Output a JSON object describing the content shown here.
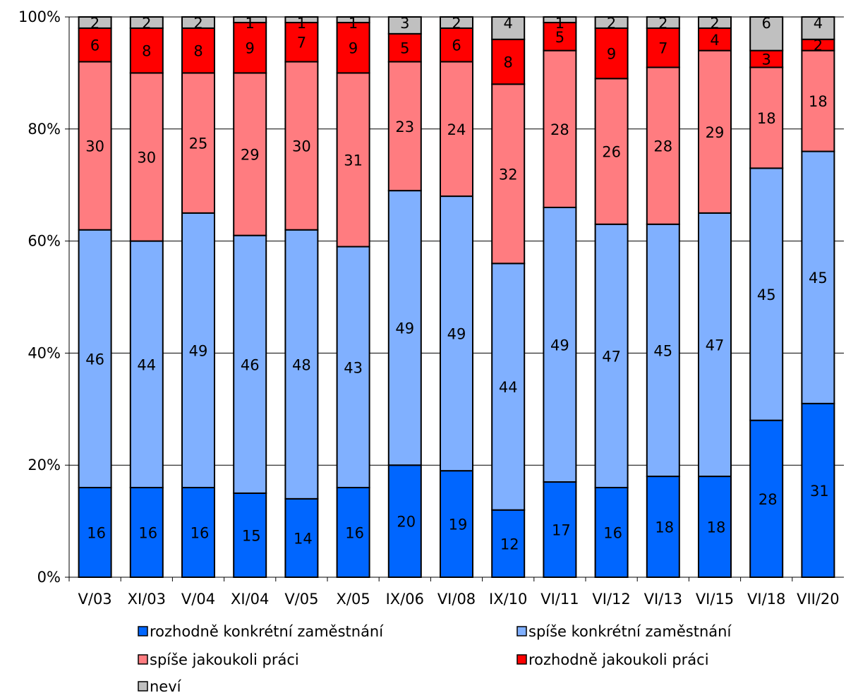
{
  "chart_data": {
    "type": "bar",
    "stacked": true,
    "percent_stacked": true,
    "categories": [
      "V/03",
      "XI/03",
      "V/04",
      "XI/04",
      "V/05",
      "X/05",
      "IX/06",
      "VI/08",
      "IX/10",
      "VI/11",
      "VI/12",
      "VI/13",
      "VI/15",
      "VI/18",
      "VII/20"
    ],
    "series": [
      {
        "name": "rozhodně konkrétní zaměstnání",
        "color": "#0066ff",
        "values": [
          16,
          16,
          16,
          15,
          14,
          16,
          20,
          19,
          12,
          17,
          16,
          18,
          18,
          28,
          31
        ]
      },
      {
        "name": "spíše konkrétní zaměstnání",
        "color": "#80b0ff",
        "values": [
          46,
          44,
          49,
          46,
          48,
          43,
          49,
          49,
          44,
          49,
          47,
          45,
          47,
          45,
          45
        ]
      },
      {
        "name": "spíše jakoukoli práci",
        "color": "#ff7c80",
        "values": [
          30,
          30,
          25,
          29,
          30,
          31,
          23,
          24,
          32,
          28,
          26,
          28,
          29,
          18,
          18
        ]
      },
      {
        "name": "rozhodně jakoukoli práci",
        "color": "#ff0000",
        "values": [
          6,
          8,
          8,
          9,
          7,
          9,
          5,
          6,
          8,
          5,
          9,
          7,
          4,
          3,
          2
        ]
      },
      {
        "name": "neví",
        "color": "#c0c0c0",
        "values": [
          2,
          2,
          2,
          1,
          1,
          1,
          3,
          2,
          4,
          1,
          2,
          2,
          2,
          6,
          4
        ]
      }
    ],
    "yticks": [
      "0%",
      "20%",
      "40%",
      "60%",
      "80%",
      "100%"
    ],
    "ylim": [
      0,
      100
    ],
    "grid": true,
    "legend": "bottom",
    "title": "",
    "xlabel": "",
    "ylabel": ""
  }
}
